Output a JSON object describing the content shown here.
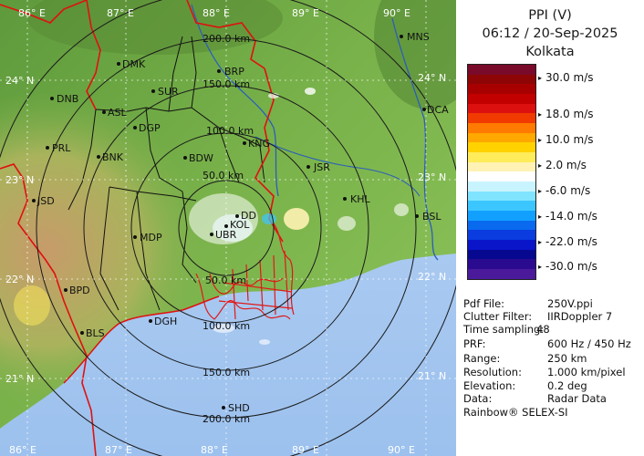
{
  "header": {
    "product": "PPI (V)",
    "datetime": "06:12 / 20-Sep-2025",
    "station": "Kolkata"
  },
  "legend": {
    "labels": [
      "30.0 m/s",
      "18.0 m/s",
      "10.0 m/s",
      "2.0 m/s",
      "-6.0 m/s",
      "-14.0 m/s",
      "-22.0 m/s",
      "-30.0 m/s"
    ],
    "colors": [
      "#7a0a2a",
      "#8e0505",
      "#a80000",
      "#c20000",
      "#dd1010",
      "#f03a00",
      "#ff7a00",
      "#ffa800",
      "#ffd200",
      "#ffec5a",
      "#fff2b4",
      "#ffffff",
      "#c8f4ff",
      "#80e4ff",
      "#3cc6ff",
      "#12a0ff",
      "#0a6aef",
      "#0a3ce0",
      "#0a14c8",
      "#06098f",
      "#2a0a8f",
      "#4b1a9b"
    ]
  },
  "info": [
    {
      "key": "Pdf File:",
      "value": "250V.ppi"
    },
    {
      "key": "Clutter Filter:",
      "value": "IIRDoppler 7"
    },
    {
      "key": "Time sampling:",
      "value": "48"
    },
    {
      "key": "PRF:",
      "value": "600 Hz / 450 Hz"
    },
    {
      "key": "Range:",
      "value": "250 km"
    },
    {
      "key": "Resolution:",
      "value": "1.000 km/pixel"
    },
    {
      "key": "Elevation:",
      "value": "0.2 deg"
    },
    {
      "key": "Data:",
      "value": "Radar Data"
    }
  ],
  "credit": "Rainbow® SELEX-SI",
  "map": {
    "lon_labels": [
      "86° E",
      "87° E",
      "88° E",
      "89° E",
      "90° E"
    ],
    "lat_labels": [
      "24° N",
      "23° N",
      "22° N",
      "21° N"
    ],
    "range_rings": [
      "50.0 km",
      "100.0 km",
      "150.0 km",
      "200.0 km"
    ],
    "cities": [
      "MNS",
      "DMK",
      "BRP",
      "DNB",
      "SUR",
      "ASL",
      "DGP",
      "DCA",
      "PRL",
      "BNK",
      "BDW",
      "KNG",
      "JSR",
      "KHL",
      "JSD",
      "BSL",
      "MDP",
      "BPD",
      "DGH",
      "BLS",
      "SHD",
      "KOL",
      "UBR",
      "DD"
    ]
  }
}
